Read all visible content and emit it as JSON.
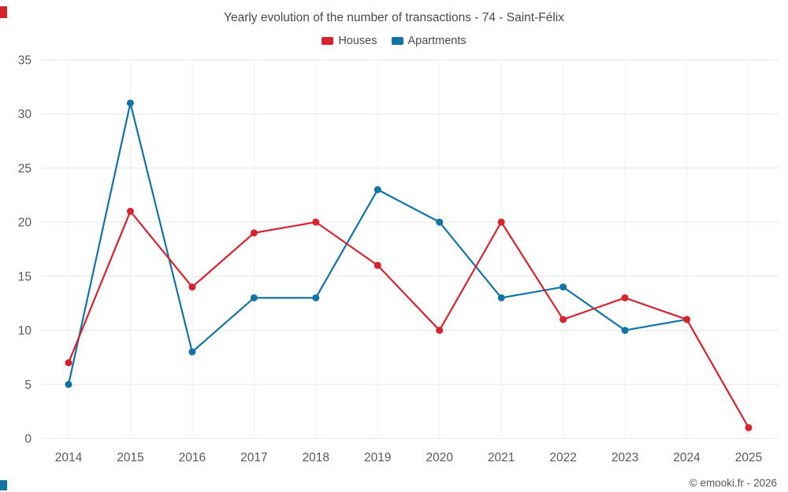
{
  "header": {
    "title": "Yearly evolution of the number of transactions - 74 - Saint-Félix"
  },
  "legend": {
    "items": [
      {
        "label": "Houses",
        "color": "#d7232f"
      },
      {
        "label": "Apartments",
        "color": "#1273a5"
      }
    ]
  },
  "footer": {
    "text": "© emooki.fr - 2026"
  },
  "accents": {
    "top_left": "#d7232f",
    "bottom_left": "#1273a5"
  },
  "chart_data": {
    "type": "line",
    "title": "Yearly evolution of the number of transactions - 74 - Saint-Félix",
    "categories": [
      "2014",
      "2015",
      "2016",
      "2017",
      "2018",
      "2019",
      "2020",
      "2021",
      "2022",
      "2023",
      "2024",
      "2025"
    ],
    "series": [
      {
        "name": "Houses",
        "color": "#d7232f",
        "values": [
          7,
          21,
          14,
          19,
          20,
          16,
          10,
          20,
          11,
          13,
          11,
          1
        ]
      },
      {
        "name": "Apartments",
        "color": "#1273a5",
        "values": [
          5,
          31,
          8,
          13,
          13,
          23,
          20,
          13,
          14,
          10,
          11,
          null
        ]
      }
    ],
    "xlabel": "",
    "ylabel": "",
    "ylim": [
      0,
      35
    ],
    "yticks": [
      0,
      5,
      10,
      15,
      20,
      25,
      30,
      35
    ],
    "grid": true,
    "legend_position": "top"
  }
}
